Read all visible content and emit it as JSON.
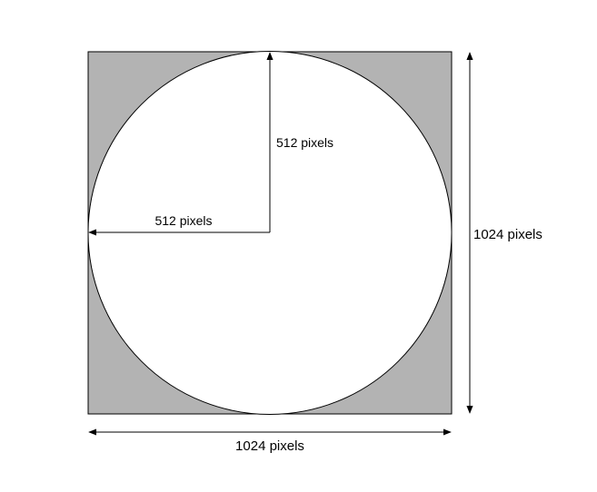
{
  "diagram": {
    "labels": {
      "vertical_radius": "512 pixels",
      "horizontal_radius": "512 pixels",
      "height": "1024 pixels",
      "width": "1024 pixels"
    },
    "colors": {
      "square_fill": "#b3b3b3",
      "circle_fill": "#ffffff",
      "stroke": "#000000"
    }
  }
}
